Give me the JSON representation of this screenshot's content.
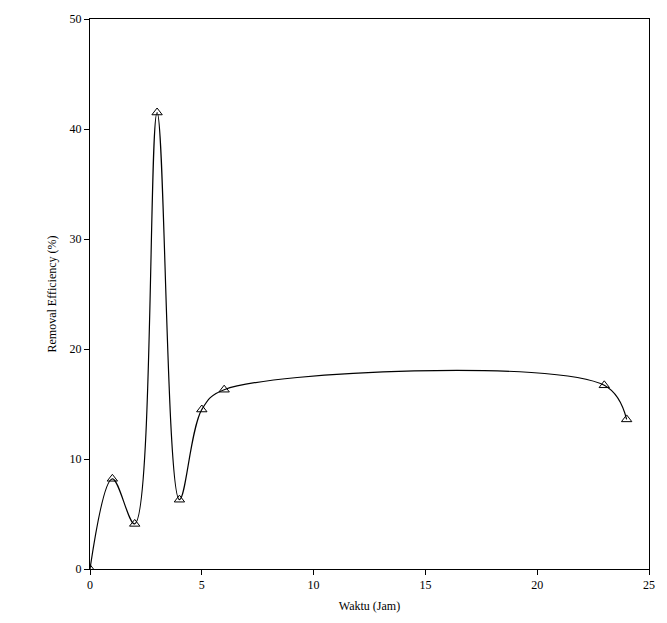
{
  "chart_data": {
    "type": "line",
    "x_label": "Waktu (Jam)",
    "y_label": "Removal Efficiency (%)",
    "x": [
      0,
      1,
      2,
      3,
      4,
      5,
      6,
      23,
      24
    ],
    "values": [
      0,
      8.2,
      4.1,
      41.5,
      6.3,
      14.5,
      16.3,
      16.7,
      13.6
    ],
    "color": "#000000",
    "marker": "triangle-open",
    "line_style": "smooth",
    "xlim": [
      0,
      25
    ],
    "xticks": [
      0,
      5,
      10,
      15,
      20,
      25
    ],
    "ylim": [
      0,
      50
    ],
    "yticks": [
      0,
      10,
      20,
      30,
      40,
      50
    ],
    "grid": false
  }
}
